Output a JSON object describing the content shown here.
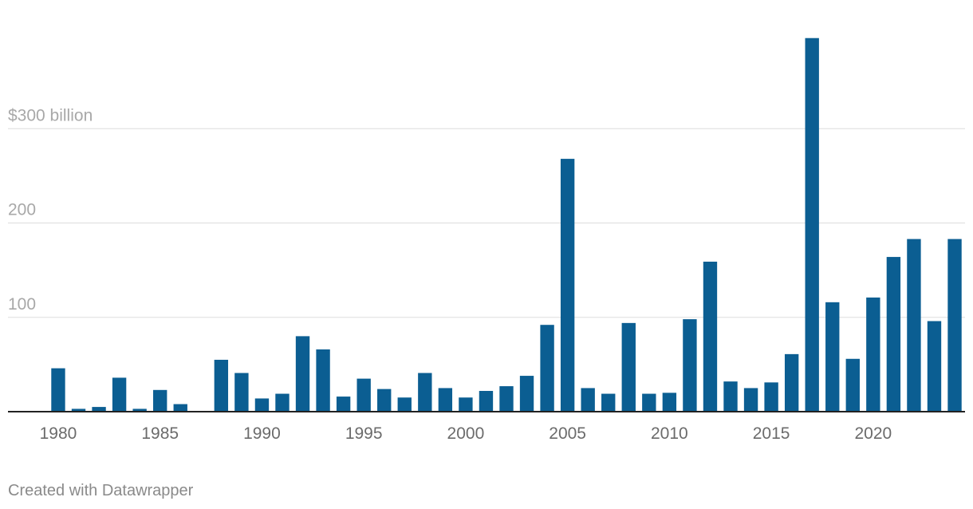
{
  "chart_data": {
    "type": "bar",
    "x": [
      1980,
      1981,
      1982,
      1983,
      1984,
      1985,
      1986,
      1987,
      1988,
      1989,
      1990,
      1991,
      1992,
      1993,
      1994,
      1995,
      1996,
      1997,
      1998,
      1999,
      2000,
      2001,
      2002,
      2003,
      2004,
      2005,
      2006,
      2007,
      2008,
      2009,
      2010,
      2011,
      2012,
      2013,
      2014,
      2015,
      2016,
      2017,
      2018,
      2019,
      2020,
      2021,
      2022,
      2023,
      2024
    ],
    "values": [
      46,
      3,
      5,
      36,
      3,
      23,
      8,
      0,
      55,
      41,
      14,
      19,
      80,
      66,
      16,
      35,
      24,
      15,
      41,
      25,
      15,
      22,
      27,
      38,
      92,
      268,
      25,
      19,
      94,
      19,
      20,
      98,
      159,
      32,
      25,
      31,
      61,
      396,
      116,
      56,
      121,
      164,
      183,
      96,
      183
    ],
    "color": "#0b5e92",
    "xlim": [
      1979.5,
      2024.5
    ],
    "xticks": [
      1980,
      1985,
      1990,
      1995,
      2000,
      2005,
      2010,
      2015,
      2020
    ],
    "ylim": [
      0,
      400
    ],
    "yticks": [
      100,
      200,
      {
        "value": 300,
        "label": "$300 billion"
      }
    ],
    "grid": true,
    "footer": "Created with Datawrapper"
  }
}
